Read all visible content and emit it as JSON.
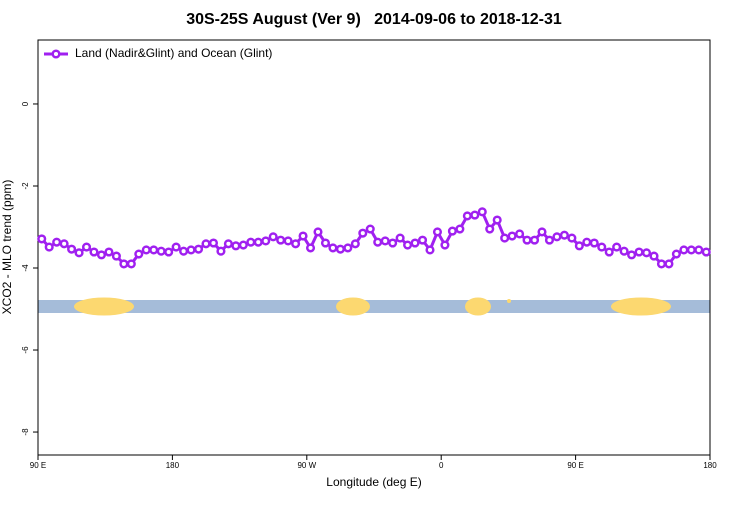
{
  "chart_data": {
    "type": "line",
    "title": "30S-25S August (Ver 9)   2014-09-06 to 2018-12-31",
    "x_label": "Longitude (deg E)",
    "y_label": "XCO2 - MLO trend (ppm)",
    "xlim": [
      90,
      540
    ],
    "xticks": [
      {
        "value": 90,
        "label": "90 E"
      },
      {
        "value": 180,
        "label": "180"
      },
      {
        "value": 270,
        "label": "90 W"
      },
      {
        "value": 360,
        "label": "0"
      },
      {
        "value": 450,
        "label": "90 E"
      },
      {
        "value": 540,
        "label": "180"
      }
    ],
    "ylim": [
      -8.56,
      1.56
    ],
    "yticks": [
      0,
      -2,
      -4,
      -6,
      -8
    ],
    "legend": "top-left",
    "x": [
      92.5,
      97.5,
      102.5,
      107.5,
      112.5,
      117.5,
      122.5,
      127.5,
      132.5,
      137.5,
      142.5,
      147.5,
      152.5,
      157.5,
      162.5,
      167.5,
      172.5,
      177.5,
      182.5,
      187.5,
      192.5,
      197.5,
      202.5,
      207.5,
      212.5,
      217.5,
      222.5,
      227.5,
      232.5,
      237.5,
      242.5,
      247.5,
      252.5,
      257.5,
      262.5,
      267.5,
      272.5,
      277.5,
      282.5,
      287.5,
      292.5,
      297.5,
      302.5,
      307.5,
      312.5,
      317.5,
      322.5,
      327.5,
      332.5,
      337.5,
      342.5,
      347.5,
      352.5,
      357.5,
      362.5,
      367.5,
      372.5,
      377.5,
      382.5,
      387.5,
      392.5,
      397.5,
      402.5,
      407.5,
      412.5,
      417.5,
      422.5,
      427.5,
      432.5,
      437.5,
      442.5,
      447.5,
      452.5,
      457.5,
      462.5,
      467.5,
      472.5,
      477.5,
      482.5,
      487.5,
      492.5,
      497.5,
      502.5,
      507.5,
      512.5,
      517.5,
      522.5,
      527.5,
      532.5,
      537.5
    ],
    "series": [
      {
        "name": "Land (Nadir&Glint) and Ocean (Glint)",
        "color": "#a020f0",
        "values": [
          -3.29,
          -3.49,
          -3.37,
          -3.41,
          -3.54,
          -3.63,
          -3.49,
          -3.61,
          -3.68,
          -3.61,
          -3.71,
          -3.9,
          -3.9,
          -3.66,
          -3.56,
          -3.56,
          -3.59,
          -3.61,
          -3.49,
          -3.59,
          -3.56,
          -3.54,
          -3.41,
          -3.39,
          -3.59,
          -3.41,
          -3.46,
          -3.44,
          -3.37,
          -3.37,
          -3.34,
          -3.24,
          -3.32,
          -3.34,
          -3.41,
          -3.22,
          -3.51,
          -3.12,
          -3.39,
          -3.51,
          -3.54,
          -3.51,
          -3.41,
          -3.15,
          -3.05,
          -3.37,
          -3.34,
          -3.39,
          -3.27,
          -3.44,
          -3.39,
          -3.32,
          -3.56,
          -3.12,
          -3.44,
          -3.1,
          -3.05,
          -2.73,
          -2.71,
          -2.63,
          -3.05,
          -2.83,
          -3.27,
          -3.22,
          -3.17,
          -3.32,
          -3.32,
          -3.12,
          -3.32,
          -3.24,
          -3.2,
          -3.27,
          -3.46,
          -3.37,
          -3.39,
          -3.49,
          -3.61,
          -3.49,
          -3.59,
          -3.68,
          -3.61,
          -3.63,
          -3.71,
          -3.9,
          -3.9,
          -3.66,
          -3.56,
          -3.56,
          -3.56,
          -3.61
        ]
      }
    ]
  }
}
